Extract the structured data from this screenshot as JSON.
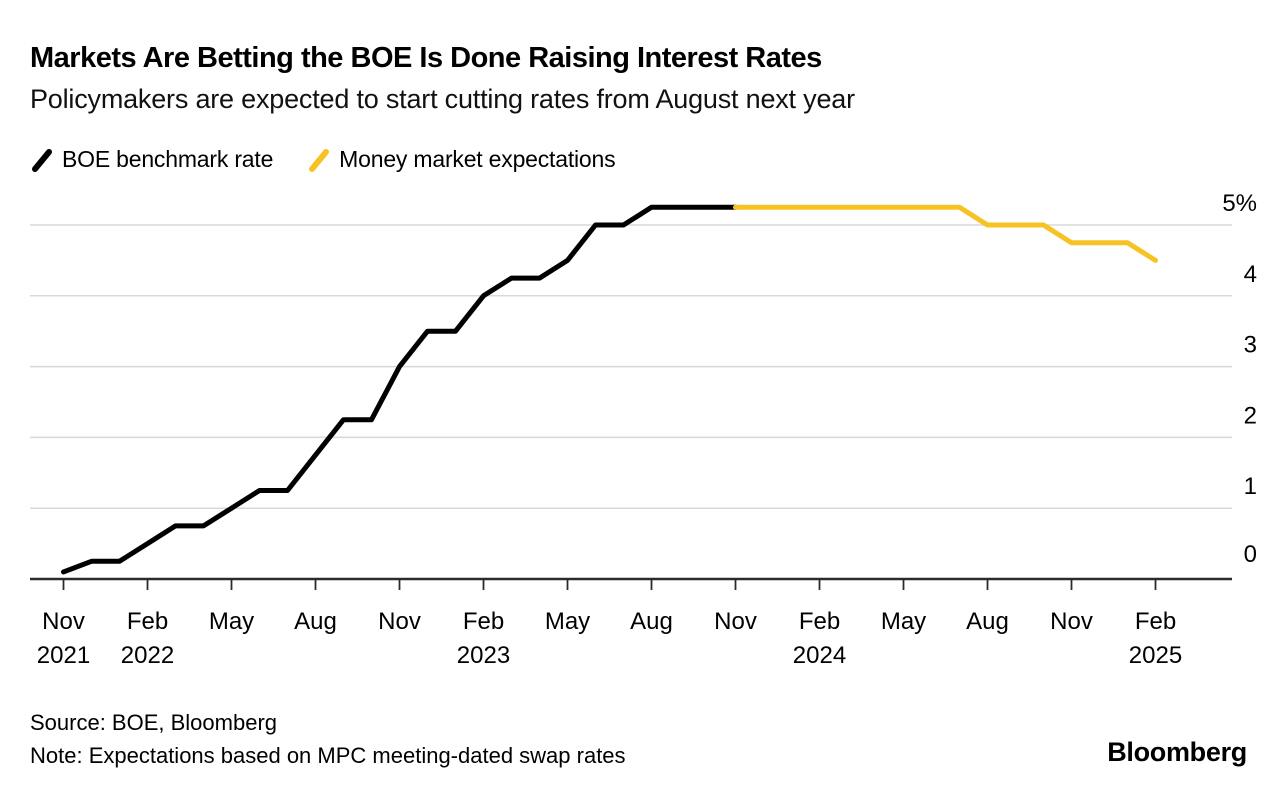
{
  "header": {
    "title": "Markets Are Betting the BOE Is Done Raising Interest Rates",
    "subtitle": "Policymakers are expected to start cutting rates from August next year"
  },
  "legend": {
    "items": [
      {
        "label": "BOE benchmark rate",
        "color": "#000000",
        "icon": "black-slash-icon"
      },
      {
        "label": "Money market expectations",
        "color": "#F7C324",
        "icon": "yellow-slash-icon"
      }
    ]
  },
  "chart_data": {
    "type": "line",
    "title": "Markets Are Betting the BOE Is Done Raising Interest Rates",
    "subtitle": "Policymakers are expected to start cutting rates from August next year",
    "x_start_month": "Nov 2021",
    "x_end_month": "Feb 2025",
    "x_axis": {
      "months_per_tick": 3,
      "ticks": [
        {
          "month": "Nov",
          "year": "2021"
        },
        {
          "month": "Feb",
          "year": "2022"
        },
        {
          "month": "May"
        },
        {
          "month": "Aug"
        },
        {
          "month": "Nov"
        },
        {
          "month": "Feb",
          "year": "2023"
        },
        {
          "month": "May"
        },
        {
          "month": "Aug"
        },
        {
          "month": "Nov"
        },
        {
          "month": "Feb",
          "year": "2024"
        },
        {
          "month": "May"
        },
        {
          "month": "Aug"
        },
        {
          "month": "Nov"
        },
        {
          "month": "Feb",
          "year": "2025"
        }
      ]
    },
    "y_axis": {
      "unit": "%",
      "range": [
        0,
        5.5
      ],
      "ticks": [
        {
          "value": 5,
          "label": "5%"
        },
        {
          "value": 4,
          "label": "4"
        },
        {
          "value": 3,
          "label": "3"
        },
        {
          "value": 2,
          "label": "2"
        },
        {
          "value": 1,
          "label": "1"
        },
        {
          "value": 0,
          "label": "0"
        }
      ]
    },
    "series": [
      {
        "name": "BOE benchmark rate",
        "color": "#000000",
        "start_month_index": 0,
        "values": [
          0.1,
          0.25,
          0.25,
          0.5,
          0.75,
          0.75,
          1.0,
          1.25,
          1.25,
          1.75,
          2.25,
          2.25,
          3.0,
          3.5,
          3.5,
          4.0,
          4.25,
          4.25,
          4.5,
          5.0,
          5.0,
          5.25,
          5.25,
          5.25,
          5.25
        ]
      },
      {
        "name": "Money market expectations",
        "color": "#F7C324",
        "start_month_index": 24,
        "values": [
          5.25,
          5.25,
          5.25,
          5.25,
          5.25,
          5.25,
          5.25,
          5.25,
          5.25,
          5.0,
          5.0,
          5.0,
          4.75,
          4.75,
          4.75,
          4.5
        ]
      }
    ],
    "grid": true,
    "legend_position": "top-left",
    "style": {
      "background": "#ffffff",
      "grid_color": "#d8d8d8",
      "axis_color": "#2b2b2b",
      "line_width": 5
    }
  },
  "footer": {
    "source": "Source: BOE, Bloomberg",
    "note": "Note: Expectations based on MPC meeting-dated swap rates",
    "brand": "Bloomberg"
  }
}
